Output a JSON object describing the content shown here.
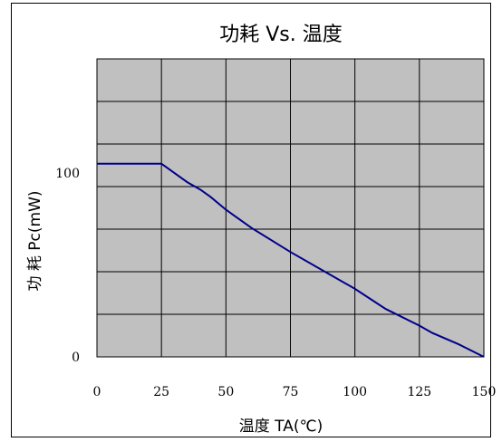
{
  "chart_data": {
    "type": "line",
    "title": "功耗 Vs. 温度",
    "xlabel": "温度 TA(℃)",
    "ylabel": "功 耗 Pc(mW)",
    "x_ticks": [
      "0",
      "25",
      "50",
      "75",
      "100",
      "125",
      "150"
    ],
    "y_ticks": [
      "0",
      "100"
    ],
    "xlim": [
      0,
      150
    ],
    "ylim": [
      0,
      162
    ],
    "grid": true,
    "plot_background": "#c0c0c0",
    "line_color": "#00008b",
    "series": [
      {
        "x": [
          0,
          10,
          20,
          25,
          30,
          35,
          40,
          44,
          50,
          60,
          75,
          90,
          100,
          112,
          125,
          130,
          140,
          150
        ],
        "y": [
          105,
          105,
          105,
          105,
          100,
          95,
          91,
          87,
          80,
          70,
          57,
          45,
          37,
          26,
          17,
          13,
          7,
          0
        ]
      }
    ]
  }
}
